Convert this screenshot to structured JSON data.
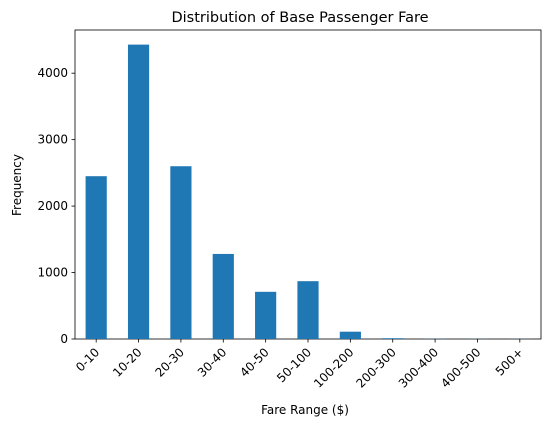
{
  "chart_data": {
    "type": "bar",
    "title": "Distribution of Base Passenger Fare",
    "xlabel": "Fare Range ($)",
    "ylabel": "Frequency",
    "categories": [
      "0-10",
      "10-20",
      "20-30",
      "30-40",
      "40-50",
      "50-100",
      "100-200",
      "200-300",
      "300-400",
      "400-500",
      "500+"
    ],
    "values": [
      2450,
      4430,
      2600,
      1280,
      710,
      870,
      110,
      12,
      3,
      2,
      2
    ],
    "ylim": [
      0,
      4650
    ],
    "yticks": [
      0,
      1000,
      2000,
      3000,
      4000
    ],
    "bar_color": "#1f77b4",
    "grid": false,
    "legend": false,
    "xtick_rotation": 45
  }
}
